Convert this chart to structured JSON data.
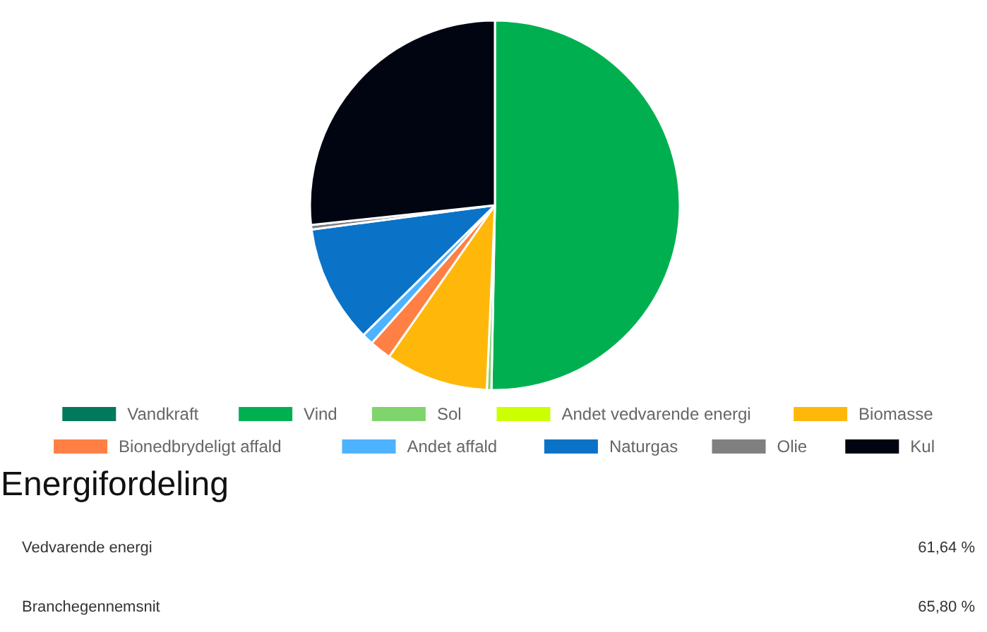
{
  "chart_data": {
    "type": "pie",
    "title": "Energifordeling",
    "categories": [
      "Vandkraft",
      "Vind",
      "Sol",
      "Andet vedvarende energi",
      "Biomasse",
      "Bionedbrydeligt affald",
      "Andet affald",
      "Naturgas",
      "Olie",
      "Kul"
    ],
    "values": [
      0,
      50.3,
      0.4,
      0,
      9.0,
      1.9,
      1.0,
      10.3,
      0.4,
      26.7
    ],
    "colors": [
      "#00795c",
      "#00b050",
      "#80d46c",
      "#ccff00",
      "#ffb80a",
      "#ff7f45",
      "#4db3ff",
      "#0a73c8",
      "#808080",
      "#000511"
    ],
    "legend": "bottom",
    "annotations": [
      "Vedvarende energi",
      "61,64 %",
      "Branchegennemsnit",
      "65,80 %"
    ]
  }
}
